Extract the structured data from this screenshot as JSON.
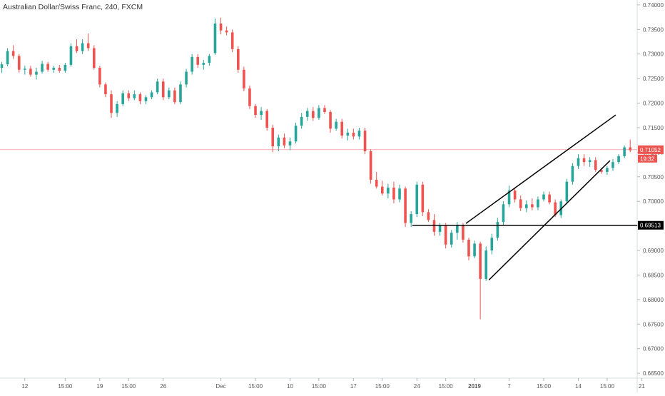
{
  "chart_data": {
    "type": "candlestick",
    "title": "Australian Dollar/Swiss Franc, 240, FXCM",
    "y_ticks": [
      "0.74000",
      "0.73500",
      "0.73000",
      "0.72500",
      "0.72000",
      "0.71500",
      "0.71000",
      "0.70500",
      "0.70000",
      "0.69500",
      "0.69000",
      "0.68500",
      "0.68000",
      "0.67500",
      "0.67000",
      "0.66500"
    ],
    "y_tick_values": [
      0.74,
      0.735,
      0.73,
      0.725,
      0.72,
      0.715,
      0.71,
      0.705,
      0.7,
      0.695,
      0.69,
      0.685,
      0.68,
      0.675,
      0.67,
      0.665
    ],
    "x_ticks": [
      {
        "label": "12",
        "bar": 4
      },
      {
        "label": "15:00",
        "bar": 11
      },
      {
        "label": "19",
        "bar": 17
      },
      {
        "label": "15:00",
        "bar": 22
      },
      {
        "label": "26",
        "bar": 28
      },
      {
        "label": "Dec",
        "bar": 38
      },
      {
        "label": "15:00",
        "bar": 44
      },
      {
        "label": "10",
        "bar": 50
      },
      {
        "label": "15:00",
        "bar": 55
      },
      {
        "label": "17",
        "bar": 61
      },
      {
        "label": "15:00",
        "bar": 66
      },
      {
        "label": "24",
        "bar": 72
      },
      {
        "label": "15:00",
        "bar": 77
      },
      {
        "label": "2019",
        "bar": 82
      },
      {
        "label": "7",
        "bar": 88
      },
      {
        "label": "15:00",
        "bar": 94
      },
      {
        "label": "14",
        "bar": 100
      },
      {
        "label": "15:00",
        "bar": 105
      },
      {
        "label": "21",
        "bar": 111
      }
    ],
    "ylim": [
      0.664,
      0.741
    ],
    "grid": false,
    "bull_color": "#26a69a",
    "bear_color": "#ef5350",
    "current_price": {
      "label": "0.71052",
      "value": 0.71052,
      "countdown": "19:32",
      "color": "#ef5350"
    },
    "horizontal_level": {
      "label": "0.69513",
      "value": 0.69513
    },
    "channel_upper": {
      "from": {
        "bar": 80.5,
        "price": 0.6955
      },
      "to": {
        "bar": 106.5,
        "price": 0.7176
      }
    },
    "channel_lower": {
      "from": {
        "bar": 84.5,
        "price": 0.684
      },
      "to": {
        "bar": 105.5,
        "price": 0.7083
      }
    },
    "candles": [
      {
        "o": 0.7272,
        "h": 0.7284,
        "l": 0.7262,
        "c": 0.7279
      },
      {
        "o": 0.7279,
        "h": 0.7312,
        "l": 0.7275,
        "c": 0.7306
      },
      {
        "o": 0.7306,
        "h": 0.7318,
        "l": 0.729,
        "c": 0.7296
      },
      {
        "o": 0.7296,
        "h": 0.73,
        "l": 0.7262,
        "c": 0.7268
      },
      {
        "o": 0.7268,
        "h": 0.7276,
        "l": 0.7258,
        "c": 0.727
      },
      {
        "o": 0.727,
        "h": 0.7276,
        "l": 0.7254,
        "c": 0.7258
      },
      {
        "o": 0.7258,
        "h": 0.7272,
        "l": 0.7248,
        "c": 0.7264
      },
      {
        "o": 0.7264,
        "h": 0.7286,
        "l": 0.726,
        "c": 0.728
      },
      {
        "o": 0.728,
        "h": 0.7284,
        "l": 0.7264,
        "c": 0.7268
      },
      {
        "o": 0.7268,
        "h": 0.7276,
        "l": 0.7262,
        "c": 0.7272
      },
      {
        "o": 0.7272,
        "h": 0.7278,
        "l": 0.7262,
        "c": 0.7266
      },
      {
        "o": 0.7266,
        "h": 0.7282,
        "l": 0.7262,
        "c": 0.7278
      },
      {
        "o": 0.7278,
        "h": 0.7322,
        "l": 0.7274,
        "c": 0.7316
      },
      {
        "o": 0.7316,
        "h": 0.733,
        "l": 0.7302,
        "c": 0.7306
      },
      {
        "o": 0.7306,
        "h": 0.733,
        "l": 0.73,
        "c": 0.7322
      },
      {
        "o": 0.7322,
        "h": 0.7342,
        "l": 0.7306,
        "c": 0.7312
      },
      {
        "o": 0.7312,
        "h": 0.7318,
        "l": 0.7268,
        "c": 0.7272
      },
      {
        "o": 0.7272,
        "h": 0.7276,
        "l": 0.7232,
        "c": 0.7238
      },
      {
        "o": 0.7238,
        "h": 0.7242,
        "l": 0.7212,
        "c": 0.7218
      },
      {
        "o": 0.7218,
        "h": 0.7226,
        "l": 0.717,
        "c": 0.718
      },
      {
        "o": 0.718,
        "h": 0.7204,
        "l": 0.7172,
        "c": 0.7198
      },
      {
        "o": 0.7198,
        "h": 0.7226,
        "l": 0.7194,
        "c": 0.722
      },
      {
        "o": 0.722,
        "h": 0.7226,
        "l": 0.7204,
        "c": 0.721
      },
      {
        "o": 0.721,
        "h": 0.7226,
        "l": 0.7206,
        "c": 0.7218
      },
      {
        "o": 0.7218,
        "h": 0.7222,
        "l": 0.7198,
        "c": 0.7204
      },
      {
        "o": 0.7204,
        "h": 0.7216,
        "l": 0.7198,
        "c": 0.7212
      },
      {
        "o": 0.7212,
        "h": 0.7226,
        "l": 0.7208,
        "c": 0.7222
      },
      {
        "o": 0.7222,
        "h": 0.725,
        "l": 0.7218,
        "c": 0.7244
      },
      {
        "o": 0.7244,
        "h": 0.725,
        "l": 0.7206,
        "c": 0.7212
      },
      {
        "o": 0.7212,
        "h": 0.7232,
        "l": 0.7208,
        "c": 0.7226
      },
      {
        "o": 0.7226,
        "h": 0.7232,
        "l": 0.7198,
        "c": 0.7202
      },
      {
        "o": 0.7202,
        "h": 0.7244,
        "l": 0.7198,
        "c": 0.7238
      },
      {
        "o": 0.7238,
        "h": 0.727,
        "l": 0.7232,
        "c": 0.7264
      },
      {
        "o": 0.7264,
        "h": 0.73,
        "l": 0.7258,
        "c": 0.7294
      },
      {
        "o": 0.7294,
        "h": 0.73,
        "l": 0.7272,
        "c": 0.7278
      },
      {
        "o": 0.7278,
        "h": 0.7288,
        "l": 0.7268,
        "c": 0.7282
      },
      {
        "o": 0.7282,
        "h": 0.73,
        "l": 0.7276,
        "c": 0.7296
      },
      {
        "o": 0.7302,
        "h": 0.7372,
        "l": 0.7298,
        "c": 0.7362
      },
      {
        "o": 0.7362,
        "h": 0.7374,
        "l": 0.734,
        "c": 0.7348
      },
      {
        "o": 0.7348,
        "h": 0.7356,
        "l": 0.7338,
        "c": 0.7344
      },
      {
        "o": 0.7344,
        "h": 0.735,
        "l": 0.7304,
        "c": 0.731
      },
      {
        "o": 0.731,
        "h": 0.7316,
        "l": 0.7262,
        "c": 0.7268
      },
      {
        "o": 0.7268,
        "h": 0.7274,
        "l": 0.7224,
        "c": 0.723
      },
      {
        "o": 0.723,
        "h": 0.7236,
        "l": 0.7188,
        "c": 0.7194
      },
      {
        "o": 0.7194,
        "h": 0.7198,
        "l": 0.717,
        "c": 0.7176
      },
      {
        "o": 0.7176,
        "h": 0.7192,
        "l": 0.7166,
        "c": 0.7184
      },
      {
        "o": 0.7184,
        "h": 0.7188,
        "l": 0.7144,
        "c": 0.715
      },
      {
        "o": 0.715,
        "h": 0.7156,
        "l": 0.71,
        "c": 0.7112
      },
      {
        "o": 0.7112,
        "h": 0.7136,
        "l": 0.7102,
        "c": 0.713
      },
      {
        "o": 0.713,
        "h": 0.7138,
        "l": 0.7108,
        "c": 0.7114
      },
      {
        "o": 0.7114,
        "h": 0.713,
        "l": 0.7104,
        "c": 0.7122
      },
      {
        "o": 0.7122,
        "h": 0.716,
        "l": 0.7118,
        "c": 0.7154
      },
      {
        "o": 0.7154,
        "h": 0.718,
        "l": 0.7148,
        "c": 0.7172
      },
      {
        "o": 0.7172,
        "h": 0.719,
        "l": 0.7164,
        "c": 0.7184
      },
      {
        "o": 0.7184,
        "h": 0.7192,
        "l": 0.7164,
        "c": 0.717
      },
      {
        "o": 0.717,
        "h": 0.7196,
        "l": 0.7166,
        "c": 0.719
      },
      {
        "o": 0.719,
        "h": 0.7196,
        "l": 0.7178,
        "c": 0.7182
      },
      {
        "o": 0.7182,
        "h": 0.7186,
        "l": 0.714,
        "c": 0.7148
      },
      {
        "o": 0.7148,
        "h": 0.7168,
        "l": 0.7144,
        "c": 0.7162
      },
      {
        "o": 0.7162,
        "h": 0.7168,
        "l": 0.7128,
        "c": 0.7134
      },
      {
        "o": 0.7134,
        "h": 0.7148,
        "l": 0.7124,
        "c": 0.714
      },
      {
        "o": 0.714,
        "h": 0.7148,
        "l": 0.7126,
        "c": 0.7132
      },
      {
        "o": 0.7132,
        "h": 0.715,
        "l": 0.7126,
        "c": 0.7144
      },
      {
        "o": 0.7144,
        "h": 0.715,
        "l": 0.7096,
        "c": 0.7102
      },
      {
        "o": 0.7102,
        "h": 0.7106,
        "l": 0.7036,
        "c": 0.7044
      },
      {
        "o": 0.7044,
        "h": 0.706,
        "l": 0.7026,
        "c": 0.703
      },
      {
        "o": 0.703,
        "h": 0.7042,
        "l": 0.7012,
        "c": 0.7016
      },
      {
        "o": 0.7016,
        "h": 0.7036,
        "l": 0.7006,
        "c": 0.7028
      },
      {
        "o": 0.7028,
        "h": 0.704,
        "l": 0.6996,
        "c": 0.7004
      },
      {
        "o": 0.7004,
        "h": 0.7034,
        "l": 0.6998,
        "c": 0.7026
      },
      {
        "o": 0.7026,
        "h": 0.703,
        "l": 0.6948,
        "c": 0.6956
      },
      {
        "o": 0.6956,
        "h": 0.698,
        "l": 0.6948,
        "c": 0.6974
      },
      {
        "o": 0.6974,
        "h": 0.704,
        "l": 0.6968,
        "c": 0.7034
      },
      {
        "o": 0.7034,
        "h": 0.704,
        "l": 0.697,
        "c": 0.6978
      },
      {
        "o": 0.6978,
        "h": 0.6984,
        "l": 0.6958,
        "c": 0.6962
      },
      {
        "o": 0.6962,
        "h": 0.6974,
        "l": 0.693,
        "c": 0.6938
      },
      {
        "o": 0.6938,
        "h": 0.6956,
        "l": 0.693,
        "c": 0.695
      },
      {
        "o": 0.695,
        "h": 0.6956,
        "l": 0.6904,
        "c": 0.6912
      },
      {
        "o": 0.6912,
        "h": 0.6942,
        "l": 0.6906,
        "c": 0.6936
      },
      {
        "o": 0.6936,
        "h": 0.6958,
        "l": 0.6922,
        "c": 0.6952
      },
      {
        "o": 0.6952,
        "h": 0.6956,
        "l": 0.6916,
        "c": 0.6922
      },
      {
        "o": 0.6922,
        "h": 0.6926,
        "l": 0.688,
        "c": 0.6888
      },
      {
        "o": 0.6888,
        "h": 0.692,
        "l": 0.6884,
        "c": 0.6914
      },
      {
        "o": 0.6914,
        "h": 0.6918,
        "l": 0.676,
        "c": 0.6842
      },
      {
        "o": 0.6842,
        "h": 0.6908,
        "l": 0.6838,
        "c": 0.69
      },
      {
        "o": 0.69,
        "h": 0.6934,
        "l": 0.6892,
        "c": 0.6926
      },
      {
        "o": 0.6926,
        "h": 0.6966,
        "l": 0.692,
        "c": 0.6958
      },
      {
        "o": 0.6958,
        "h": 0.7,
        "l": 0.695,
        "c": 0.6994
      },
      {
        "o": 0.6994,
        "h": 0.7032,
        "l": 0.6988,
        "c": 0.7022
      },
      {
        "o": 0.7022,
        "h": 0.7028,
        "l": 0.6998,
        "c": 0.7004
      },
      {
        "o": 0.7004,
        "h": 0.7012,
        "l": 0.698,
        "c": 0.6986
      },
      {
        "o": 0.6986,
        "h": 0.7002,
        "l": 0.6978,
        "c": 0.6994
      },
      {
        "o": 0.6994,
        "h": 0.7006,
        "l": 0.6982,
        "c": 0.6988
      },
      {
        "o": 0.6988,
        "h": 0.701,
        "l": 0.6982,
        "c": 0.7004
      },
      {
        "o": 0.7004,
        "h": 0.702,
        "l": 0.7,
        "c": 0.7014
      },
      {
        "o": 0.7014,
        "h": 0.702,
        "l": 0.6994,
        "c": 0.6998
      },
      {
        "o": 0.6998,
        "h": 0.7004,
        "l": 0.6968,
        "c": 0.6972
      },
      {
        "o": 0.6972,
        "h": 0.7004,
        "l": 0.6966,
        "c": 0.7
      },
      {
        "o": 0.7,
        "h": 0.7046,
        "l": 0.6994,
        "c": 0.704
      },
      {
        "o": 0.704,
        "h": 0.7078,
        "l": 0.7034,
        "c": 0.7072
      },
      {
        "o": 0.7072,
        "h": 0.7096,
        "l": 0.7066,
        "c": 0.7088
      },
      {
        "o": 0.7088,
        "h": 0.7096,
        "l": 0.7072,
        "c": 0.708
      },
      {
        "o": 0.708,
        "h": 0.709,
        "l": 0.707,
        "c": 0.7084
      },
      {
        "o": 0.7084,
        "h": 0.709,
        "l": 0.706,
        "c": 0.7064
      },
      {
        "o": 0.7064,
        "h": 0.7068,
        "l": 0.7056,
        "c": 0.706
      },
      {
        "o": 0.706,
        "h": 0.7072,
        "l": 0.7054,
        "c": 0.7068
      },
      {
        "o": 0.7068,
        "h": 0.7086,
        "l": 0.7062,
        "c": 0.708
      },
      {
        "o": 0.708,
        "h": 0.7096,
        "l": 0.7076,
        "c": 0.7092
      },
      {
        "o": 0.7092,
        "h": 0.7114,
        "l": 0.7088,
        "c": 0.711
      },
      {
        "o": 0.711,
        "h": 0.7126,
        "l": 0.71,
        "c": 0.7104
      }
    ]
  }
}
